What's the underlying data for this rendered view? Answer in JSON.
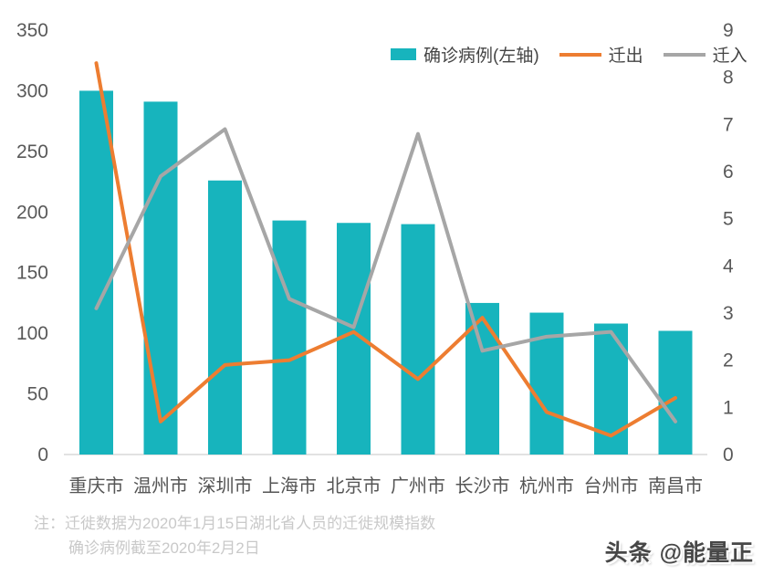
{
  "chart_data": {
    "type": "bar",
    "combo": true,
    "categories": [
      "重庆市",
      "温州市",
      "深圳市",
      "上海市",
      "北京市",
      "广州市",
      "长沙市",
      "杭州市",
      "台州市",
      "南昌市"
    ],
    "series": [
      {
        "name": "确诊病例(左轴)",
        "type": "bar",
        "axis": "left",
        "color": "#17B4BD",
        "values": [
          300,
          291,
          226,
          193,
          191,
          190,
          125,
          117,
          108,
          102
        ]
      },
      {
        "name": "迁出",
        "type": "line",
        "axis": "right",
        "color": "#ED7D31",
        "values": [
          8.3,
          0.7,
          1.9,
          2.0,
          2.6,
          1.6,
          2.9,
          0.9,
          0.4,
          1.2
        ]
      },
      {
        "name": "迁入",
        "type": "line",
        "axis": "right",
        "color": "#A6A6A6",
        "values": [
          3.1,
          5.9,
          6.9,
          3.3,
          2.7,
          6.8,
          2.2,
          2.5,
          2.6,
          0.7
        ]
      }
    ],
    "left_axis": {
      "min": 0,
      "max": 350,
      "step": 50,
      "ticks": [
        0,
        50,
        100,
        150,
        200,
        250,
        300,
        350
      ]
    },
    "right_axis": {
      "min": 0,
      "max": 9,
      "step": 1,
      "ticks": [
        0,
        1,
        2,
        3,
        4,
        5,
        6,
        7,
        8,
        9
      ]
    },
    "legend_position": "top",
    "grid": false,
    "baseline_color": "#d9d9d9",
    "title": "",
    "xlabel": "",
    "ylabel": ""
  },
  "footnote": {
    "line1": "注：迁徙数据为2020年1月15日湖北省人员的迁徙规模指数",
    "line2": "确诊病例截至2020年2月2日"
  },
  "watermark": {
    "brand": "头条",
    "account": "@能量正"
  }
}
